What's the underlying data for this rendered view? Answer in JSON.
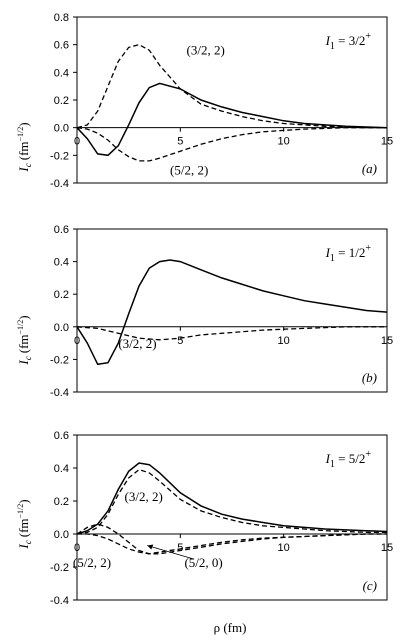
{
  "figure": {
    "xlabel": "ρ (fm)",
    "ylabel_main": "I",
    "ylabel_sub": "c",
    "ylabel_units": "(fm",
    "ylabel_exp": "−1/2",
    "ylabel_close": ")"
  },
  "chart_data": [
    {
      "type": "line",
      "panel_label": "(a)",
      "state_prefix": "I",
      "state_sub": "1",
      "state_value": " = 3/2",
      "state_sup": "+",
      "xlim": [
        0,
        15
      ],
      "ylim": [
        -0.4,
        0.8
      ],
      "x_ticks": [
        "0",
        "5",
        "10",
        "15"
      ],
      "y_ticks": [
        "-0.4",
        "-0.2",
        "0.0",
        "0.2",
        "0.4",
        "0.6",
        "0.8"
      ],
      "y_tick_values": [
        -0.4,
        -0.2,
        0.0,
        0.2,
        0.4,
        0.6,
        0.8
      ],
      "grid": false,
      "series": [
        {
          "style": "solid",
          "x": [
            0,
            0.5,
            1,
            1.5,
            2,
            2.5,
            3,
            3.5,
            4,
            5,
            6,
            7,
            8,
            9,
            10,
            11,
            12,
            13,
            14,
            15
          ],
          "y": [
            0,
            -0.08,
            -0.19,
            -0.2,
            -0.13,
            0.02,
            0.18,
            0.29,
            0.32,
            0.28,
            0.2,
            0.15,
            0.11,
            0.08,
            0.05,
            0.03,
            0.02,
            0.01,
            0.005,
            0
          ]
        },
        {
          "label": "(3/2, 2)",
          "style": "dashed",
          "x": [
            0,
            0.5,
            1,
            1.5,
            2,
            2.5,
            3,
            3.5,
            4,
            5,
            6,
            7,
            8,
            9,
            10,
            11,
            12,
            13,
            14,
            15
          ],
          "y": [
            0,
            0.02,
            0.12,
            0.3,
            0.48,
            0.58,
            0.6,
            0.56,
            0.45,
            0.28,
            0.17,
            0.12,
            0.08,
            0.05,
            0.03,
            0.02,
            0.01,
            0.005,
            0,
            0
          ]
        },
        {
          "label": "(5/2, 2)",
          "style": "dashed",
          "x": [
            0,
            0.5,
            1,
            1.5,
            2,
            2.5,
            3,
            3.5,
            4,
            5,
            6,
            7,
            8,
            9,
            10,
            11,
            12,
            13,
            14,
            15
          ],
          "y": [
            0,
            -0.01,
            -0.04,
            -0.09,
            -0.16,
            -0.21,
            -0.24,
            -0.24,
            -0.22,
            -0.17,
            -0.12,
            -0.08,
            -0.05,
            -0.03,
            -0.02,
            -0.01,
            -0.005,
            0,
            0,
            0
          ]
        }
      ],
      "annotations": [
        {
          "text": "(3/2, 2)",
          "x": 5.3,
          "y": 0.53
        },
        {
          "text": "(5/2, 2)",
          "x": 4.5,
          "y": -0.34
        }
      ]
    },
    {
      "type": "line",
      "panel_label": "(b)",
      "state_prefix": "I",
      "state_sub": "1",
      "state_value": " = 1/2",
      "state_sup": "+",
      "xlim": [
        0,
        15
      ],
      "ylim": [
        -0.4,
        0.6
      ],
      "x_ticks": [
        "0",
        "5",
        "10",
        "15"
      ],
      "y_ticks": [
        "-0.4",
        "-0.2",
        "0.0",
        "0.2",
        "0.4",
        "0.6"
      ],
      "y_tick_values": [
        -0.4,
        -0.2,
        0.0,
        0.2,
        0.4,
        0.6
      ],
      "grid": false,
      "series": [
        {
          "style": "solid",
          "x": [
            0,
            0.5,
            1,
            1.5,
            2,
            2.5,
            3,
            3.5,
            4,
            4.5,
            5,
            6,
            7,
            8,
            9,
            10,
            11,
            12,
            13,
            14,
            15
          ],
          "y": [
            0,
            -0.1,
            -0.23,
            -0.22,
            -0.1,
            0.08,
            0.25,
            0.36,
            0.4,
            0.41,
            0.4,
            0.35,
            0.3,
            0.26,
            0.22,
            0.19,
            0.16,
            0.14,
            0.12,
            0.1,
            0.09
          ]
        },
        {
          "label": "(3/2, 2)",
          "style": "dashed",
          "x": [
            0,
            1,
            2,
            3,
            4,
            5,
            6,
            7,
            8,
            9,
            10,
            11,
            12,
            13,
            14,
            15
          ],
          "y": [
            0,
            -0.01,
            -0.04,
            -0.07,
            -0.08,
            -0.07,
            -0.05,
            -0.04,
            -0.03,
            -0.02,
            -0.015,
            -0.01,
            -0.005,
            0,
            0,
            0
          ]
        }
      ],
      "annotations": [
        {
          "text": "(3/2, 2)",
          "x": 2.0,
          "y": -0.13
        }
      ]
    },
    {
      "type": "line",
      "panel_label": "(c)",
      "state_prefix": "I",
      "state_sub": "1",
      "state_value": " = 5/2",
      "state_sup": "+",
      "xlim": [
        0,
        15
      ],
      "ylim": [
        -0.4,
        0.6
      ],
      "x_ticks": [
        "0",
        "5",
        "10",
        "15"
      ],
      "y_ticks": [
        "-0.4",
        "-0.2",
        "0.0",
        "0.2",
        "0.4",
        "0.6"
      ],
      "y_tick_values": [
        -0.4,
        -0.2,
        0.0,
        0.2,
        0.4,
        0.6
      ],
      "grid": false,
      "series": [
        {
          "style": "solid",
          "x": [
            0,
            0.5,
            1,
            1.5,
            2,
            2.5,
            3,
            3.5,
            4,
            5,
            6,
            7,
            8,
            9,
            10,
            11,
            12,
            13,
            14,
            15
          ],
          "y": [
            0,
            0.02,
            0.06,
            0.14,
            0.27,
            0.38,
            0.43,
            0.42,
            0.37,
            0.25,
            0.17,
            0.12,
            0.09,
            0.07,
            0.05,
            0.04,
            0.03,
            0.025,
            0.02,
            0.015
          ]
        },
        {
          "label": "(3/2, 2)",
          "style": "dashed",
          "x": [
            0,
            0.5,
            1,
            1.5,
            2,
            2.5,
            3,
            3.5,
            4,
            5,
            6,
            7,
            8,
            9,
            10,
            11,
            12,
            13,
            14,
            15
          ],
          "y": [
            0,
            0.01,
            0.04,
            0.12,
            0.24,
            0.34,
            0.39,
            0.37,
            0.32,
            0.21,
            0.14,
            0.1,
            0.07,
            0.05,
            0.04,
            0.03,
            0.02,
            0.015,
            0.01,
            0.01
          ]
        },
        {
          "label": "(5/2, 2)",
          "style": "dashed",
          "x": [
            0,
            0.5,
            1,
            1.5,
            2,
            2.5,
            3,
            3.5,
            4,
            5,
            6,
            7,
            8,
            9,
            10,
            11,
            12,
            13,
            14,
            15
          ],
          "y": [
            0,
            0.04,
            0.06,
            0.04,
            0,
            -0.05,
            -0.1,
            -0.12,
            -0.11,
            -0.09,
            -0.07,
            -0.05,
            -0.035,
            -0.025,
            -0.02,
            -0.015,
            -0.01,
            -0.005,
            0,
            0
          ]
        },
        {
          "label": "(5/2, 0)",
          "style": "dashed",
          "x": [
            0,
            0.5,
            1,
            1.5,
            2,
            2.5,
            3,
            3.5,
            4,
            5,
            6,
            7,
            8,
            9,
            10,
            11,
            12,
            13,
            14,
            15
          ],
          "y": [
            0,
            0,
            -0.01,
            -0.03,
            -0.06,
            -0.09,
            -0.11,
            -0.12,
            -0.12,
            -0.1,
            -0.08,
            -0.06,
            -0.045,
            -0.03,
            -0.02,
            -0.015,
            -0.01,
            -0.005,
            0,
            0
          ]
        }
      ],
      "annotations": [
        {
          "text": "(3/2, 2)",
          "x": 2.3,
          "y": 0.2
        },
        {
          "text": "(5/2, 2)",
          "x": -0.2,
          "y": -0.2
        },
        {
          "text": "(5/2, 0)",
          "x": 5.2,
          "y": -0.2
        }
      ]
    }
  ]
}
